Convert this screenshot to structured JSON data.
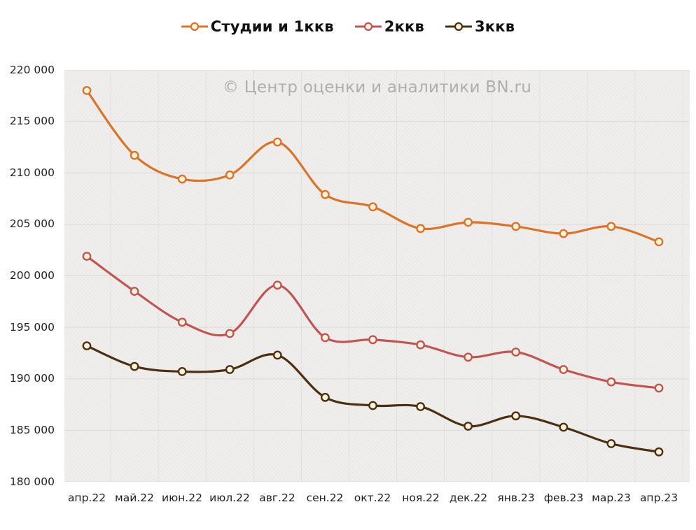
{
  "watermark": "© Центр оценки и аналитики BN.ru",
  "chart_data": {
    "type": "line",
    "title": "",
    "xlabel": "",
    "ylabel": "",
    "grid": true,
    "legend_position": "top",
    "line_smoothing": true,
    "marker_fill": "#fcf4dc",
    "plot_background": "#f0efee",
    "ylim": [
      180000,
      220000
    ],
    "y_tick_step": 5000,
    "y_tick_labels": [
      "220 000",
      "215 000",
      "210 000",
      "205 000",
      "200 000",
      "195 000",
      "190 000",
      "185 000",
      "180 000"
    ],
    "categories": [
      "апр.22",
      "май.22",
      "июн.22",
      "июл.22",
      "авг.22",
      "сен.22",
      "окт.22",
      "ноя.22",
      "дек.22",
      "янв.23",
      "фев.23",
      "мар.23",
      "апр.23"
    ],
    "series": [
      {
        "name": "Студии и 1ккв",
        "color": "#dd7327",
        "values": [
          218000,
          211700,
          209400,
          209800,
          213000,
          207900,
          206700,
          204600,
          205200,
          204800,
          204100,
          204800,
          203300
        ]
      },
      {
        "name": "2ккв",
        "color": "#c05553",
        "values": [
          201900,
          198500,
          195500,
          194400,
          199100,
          194000,
          193800,
          193300,
          192100,
          192600,
          190900,
          189700,
          189100
        ]
      },
      {
        "name": "3ккв",
        "color": "#4c2f10",
        "values": [
          193200,
          191200,
          190700,
          190900,
          192300,
          188200,
          187400,
          187300,
          185400,
          186400,
          185300,
          183700,
          182900
        ]
      }
    ]
  }
}
